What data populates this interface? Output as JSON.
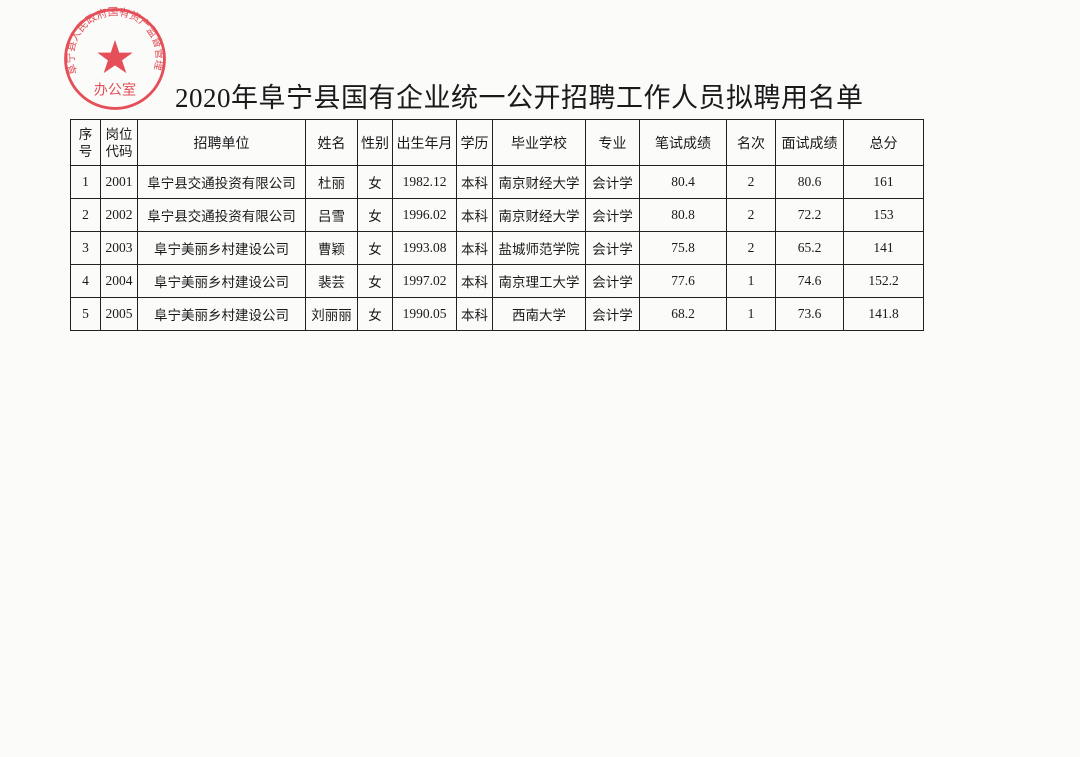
{
  "document": {
    "title": "2020年阜宁县国有企业统一公开招聘工作人员拟聘用名单",
    "seal": {
      "text": "阜宁县人民政府国有资产监督管理",
      "bottom_text": "办公室",
      "color": "#e0323c"
    },
    "table": {
      "headers": [
        "序\n号",
        "岗位\n代码",
        "招聘单位",
        "姓名",
        "性别",
        "出生年月",
        "学历",
        "毕业学校",
        "专业",
        "笔试成绩",
        "名次",
        "面试成绩",
        "总分"
      ],
      "rows": [
        [
          "1",
          "2001",
          "阜宁县交通投资有限公司",
          "杜丽",
          "女",
          "1982.12",
          "本科",
          "南京财经大学",
          "会计学",
          "80.4",
          "2",
          "80.6",
          "161"
        ],
        [
          "2",
          "2002",
          "阜宁县交通投资有限公司",
          "吕雪",
          "女",
          "1996.02",
          "本科",
          "南京财经大学",
          "会计学",
          "80.8",
          "2",
          "72.2",
          "153"
        ],
        [
          "3",
          "2003",
          "阜宁美丽乡村建设公司",
          "曹颖",
          "女",
          "1993.08",
          "本科",
          "盐城师范学院",
          "会计学",
          "75.8",
          "2",
          "65.2",
          "141"
        ],
        [
          "4",
          "2004",
          "阜宁美丽乡村建设公司",
          "裴芸",
          "女",
          "1997.02",
          "本科",
          "南京理工大学",
          "会计学",
          "77.6",
          "1",
          "74.6",
          "152.2"
        ],
        [
          "5",
          "2005",
          "阜宁美丽乡村建设公司",
          "刘丽丽",
          "女",
          "1990.05",
          "本科",
          "西南大学",
          "会计学",
          "68.2",
          "1",
          "73.6",
          "141.8"
        ]
      ]
    }
  }
}
